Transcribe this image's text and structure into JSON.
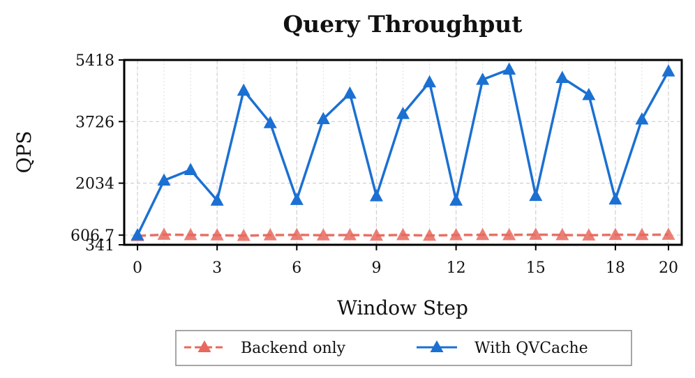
{
  "chart_data": {
    "type": "line",
    "title": "Query Throughput",
    "xlabel": "Window Step",
    "ylabel": "QPS",
    "xlim": [
      -0.5,
      20.5
    ],
    "ylim": [
      341,
      5418
    ],
    "x": [
      0,
      1,
      2,
      3,
      4,
      5,
      6,
      7,
      8,
      9,
      10,
      11,
      12,
      13,
      14,
      15,
      16,
      17,
      18,
      19,
      20
    ],
    "x_ticks": [
      0,
      3,
      6,
      9,
      12,
      15,
      18,
      20
    ],
    "y_ticks": [
      341,
      606.7,
      2034,
      3726,
      5418
    ],
    "y_tick_labels": [
      "341",
      "606.7",
      "2034",
      "3726",
      "5418"
    ],
    "grid": true,
    "legend_position": "bottom-center",
    "series": [
      {
        "name": "Backend only",
        "color": "#e8685e",
        "line_style": "dashed",
        "marker": "triangle",
        "values": [
          585,
          620,
          612,
          605,
          590,
          607,
          613,
          604,
          610,
          598,
          612,
          595,
          609,
          615,
          612,
          620,
          611,
          603,
          617,
          614,
          622
        ]
      },
      {
        "name": "With QVCache",
        "color": "#1b70d2",
        "line_style": "solid",
        "marker": "triangle",
        "values": [
          606.7,
          2110,
          2400,
          1560,
          4580,
          3690,
          1580,
          3800,
          4500,
          1680,
          3940,
          4810,
          1560,
          4880,
          5160,
          1690,
          4930,
          4460,
          1590,
          3790,
          5110
        ]
      }
    ]
  }
}
